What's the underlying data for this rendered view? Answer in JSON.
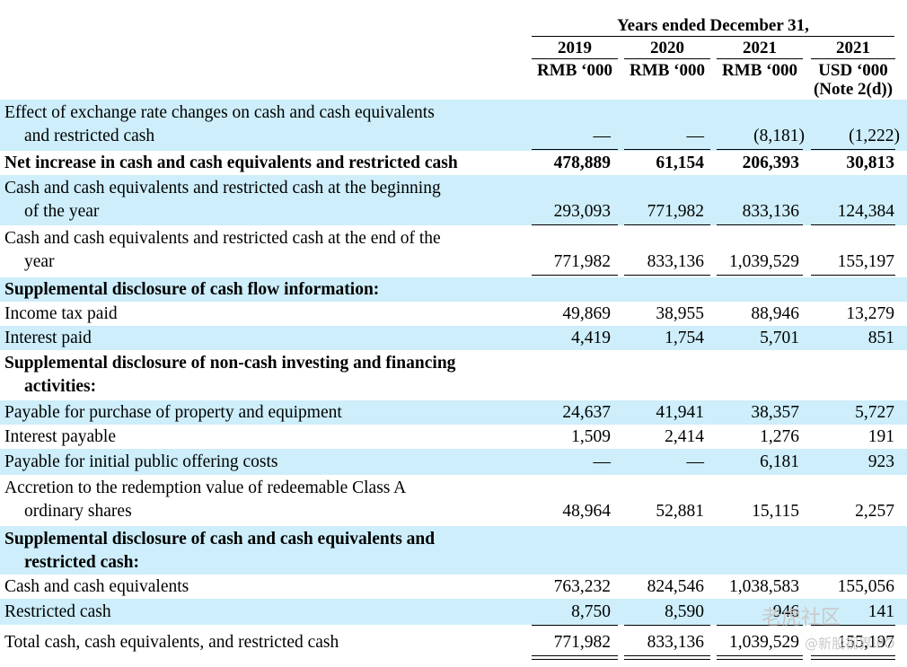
{
  "header": {
    "period": "Years ended December 31,",
    "columns": [
      {
        "year": "2019",
        "currency": "RMB ‘000",
        "note": ""
      },
      {
        "year": "2020",
        "currency": "RMB ‘000",
        "note": ""
      },
      {
        "year": "2021",
        "currency": "RMB ‘000",
        "note": ""
      },
      {
        "year": "2021",
        "currency": "USD ‘000",
        "note": "(Note 2(d))"
      }
    ]
  },
  "rows": [
    {
      "line1": "Effect of exchange rate changes on cash and cash equivalents",
      "line2": "and restricted cash",
      "bold": false,
      "values": [
        "—",
        "—",
        "(8,181)",
        "(1,222)"
      ]
    },
    {
      "line1": "Net increase in cash and cash equivalents and restricted cash",
      "line2": "",
      "bold": true,
      "values": [
        "478,889",
        "61,154",
        "206,393",
        "30,813"
      ]
    },
    {
      "line1": "Cash and cash equivalents and restricted cash at the beginning",
      "line2": "of the year",
      "bold": false,
      "values": [
        "293,093",
        "771,982",
        "833,136",
        "124,384"
      ]
    },
    {
      "line1": "Cash and cash equivalents and restricted cash at the end of the",
      "line2": "year",
      "bold": false,
      "values": [
        "771,982",
        "833,136",
        "1,039,529",
        "155,197"
      ]
    },
    {
      "line1": "Supplemental disclosure of cash flow information:",
      "line2": "",
      "bold": true,
      "values": [
        "",
        "",
        "",
        ""
      ]
    },
    {
      "line1": "Income tax paid",
      "line2": "",
      "bold": false,
      "values": [
        "49,869",
        "38,955",
        "88,946",
        "13,279"
      ]
    },
    {
      "line1": "Interest paid",
      "line2": "",
      "bold": false,
      "values": [
        "4,419",
        "1,754",
        "5,701",
        "851"
      ]
    },
    {
      "line1": "Supplemental disclosure of non-cash investing and financing",
      "line2": "activities:",
      "bold": true,
      "values": [
        "",
        "",
        "",
        ""
      ]
    },
    {
      "line1": "Payable for purchase of property and equipment",
      "line2": "",
      "bold": false,
      "values": [
        "24,637",
        "41,941",
        "38,357",
        "5,727"
      ]
    },
    {
      "line1": "Interest payable",
      "line2": "",
      "bold": false,
      "values": [
        "1,509",
        "2,414",
        "1,276",
        "191"
      ]
    },
    {
      "line1": "Payable for initial public offering costs",
      "line2": "",
      "bold": false,
      "values": [
        "—",
        "—",
        "6,181",
        "923"
      ]
    },
    {
      "line1": "Accretion to the redemption value of redeemable Class A",
      "line2": "ordinary shares",
      "bold": false,
      "values": [
        "48,964",
        "52,881",
        "15,115",
        "2,257"
      ]
    },
    {
      "line1": "Supplemental disclosure of cash and cash equivalents and",
      "line2": "restricted cash:",
      "bold": true,
      "values": [
        "",
        "",
        "",
        ""
      ]
    },
    {
      "line1": "Cash and cash equivalents",
      "line2": "",
      "bold": false,
      "values": [
        "763,232",
        "824,546",
        "1,038,583",
        "155,056"
      ]
    },
    {
      "line1": "Restricted cash",
      "line2": "",
      "bold": false,
      "values": [
        "8,750",
        "8,590",
        "946",
        "141"
      ]
    },
    {
      "line1": "Total cash, cash equivalents, and restricted cash",
      "line2": "",
      "bold": false,
      "values": [
        "771,982",
        "833,136",
        "1,039,529",
        "155,197"
      ]
    }
  ],
  "watermark": {
    "line1": "老虎社区",
    "line2": "@新股视界IPO"
  }
}
